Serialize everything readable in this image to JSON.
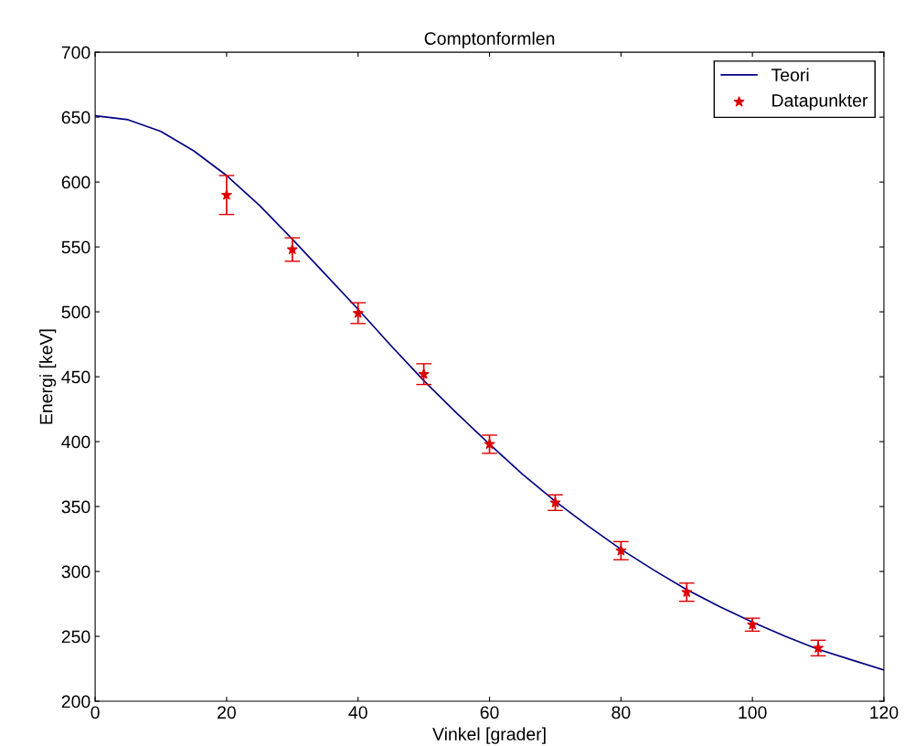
{
  "chart_data": {
    "type": "line",
    "title": "Comptonformlen",
    "xlabel": "Vinkel [grader]",
    "ylabel": "Energi [keV]",
    "xlim": [
      0,
      120
    ],
    "xticks": [
      0,
      20,
      40,
      60,
      80,
      100,
      120
    ],
    "ylim": [
      200,
      700
    ],
    "yticks": [
      200,
      250,
      300,
      350,
      400,
      450,
      500,
      550,
      600,
      650,
      700
    ],
    "grid": false,
    "legend": "top right",
    "series": [
      {
        "name": "Teori",
        "color": "#000080",
        "line_style": "solid",
        "marker": "none",
        "x": [
          0,
          5,
          10,
          15,
          20,
          25,
          30,
          35,
          40,
          45,
          50,
          55,
          60,
          65,
          70,
          75,
          80,
          85,
          90,
          95,
          100,
          105,
          110,
          115,
          120
        ],
        "values": [
          651,
          648,
          639,
          624,
          605,
          582,
          556,
          529,
          502,
          474,
          447,
          422,
          398,
          375,
          354,
          335,
          317,
          301,
          286,
          273,
          261,
          250,
          240,
          232,
          224
        ]
      },
      {
        "name": "Datapunkter",
        "type": "scatter",
        "color": "#dd0000",
        "marker": "star",
        "x": [
          20,
          30,
          40,
          50,
          60,
          70,
          80,
          90,
          100,
          110
        ],
        "values": [
          590,
          548,
          499,
          452,
          398,
          353,
          316,
          284,
          259,
          241
        ],
        "errors": [
          15,
          9,
          8,
          8,
          7,
          6,
          7,
          7,
          5,
          6
        ]
      }
    ]
  }
}
